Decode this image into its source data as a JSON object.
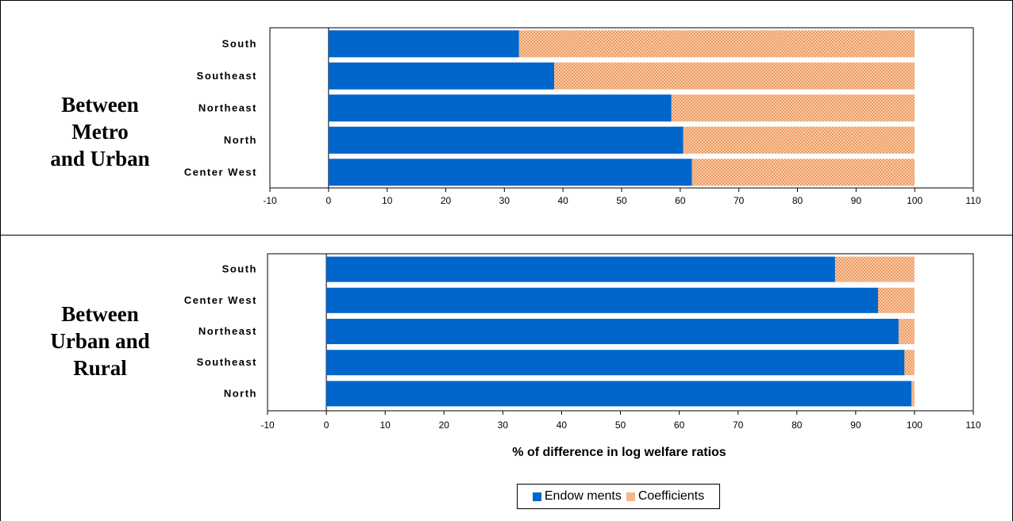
{
  "panels": [
    {
      "label_lines": [
        "Between",
        "Metro",
        "and Urban"
      ]
    },
    {
      "label_lines": [
        "Between",
        "Urban and",
        "Rural"
      ]
    }
  ],
  "colors": {
    "endowments": "#0066cc",
    "coefficients": "#f5b78a"
  },
  "legend": {
    "endowments": "Endow ments",
    "coefficients": "Coefficients"
  },
  "chart_data": [
    {
      "type": "bar",
      "orientation": "horizontal",
      "stacked": true,
      "categories": [
        "South",
        "Southeast",
        "Northeast",
        "North",
        "Center West"
      ],
      "series": [
        {
          "name": "Endow ments",
          "values": [
            32.5,
            38.5,
            58.5,
            60.5,
            62
          ]
        },
        {
          "name": "Coefficients",
          "values": [
            67.5,
            61.5,
            41.5,
            39.5,
            38
          ]
        }
      ],
      "xlim": [
        -10,
        110
      ],
      "xticks": [
        "-10",
        "0",
        "10",
        "20",
        "30",
        "40",
        "50",
        "60",
        "70",
        "80",
        "90",
        "100",
        "110"
      ],
      "xlabel": ""
    },
    {
      "type": "bar",
      "orientation": "horizontal",
      "stacked": true,
      "categories": [
        "South",
        "Center West",
        "Northeast",
        "Southeast",
        "North"
      ],
      "series": [
        {
          "name": "Endow ments",
          "values": [
            86.5,
            93.8,
            97.3,
            98.3,
            99.5
          ]
        },
        {
          "name": "Coefficients",
          "values": [
            13.5,
            6.2,
            2.7,
            1.7,
            0.5
          ]
        }
      ],
      "xlim": [
        -10,
        110
      ],
      "xticks": [
        "-10",
        "0",
        "10",
        "20",
        "30",
        "40",
        "50",
        "60",
        "70",
        "80",
        "90",
        "100",
        "110"
      ],
      "xlabel": "% of difference in log welfare ratios"
    }
  ]
}
